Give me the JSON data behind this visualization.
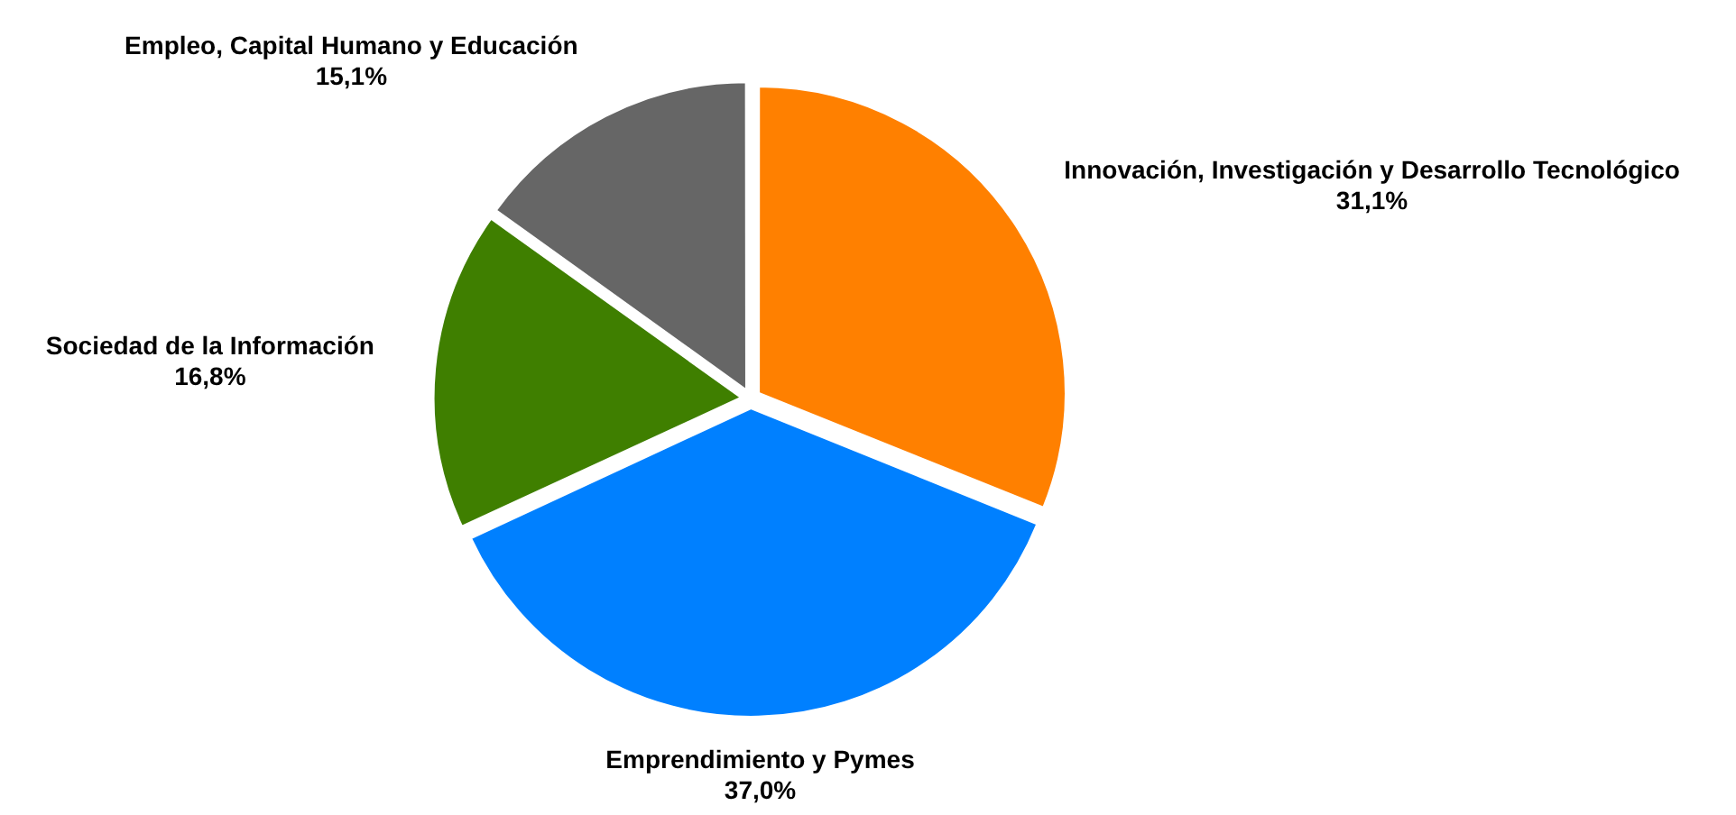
{
  "chart_data": {
    "type": "pie",
    "categories": [
      "Innovación, Investigación y Desarrollo Tecnológico",
      "Emprendimiento y Pymes",
      "Sociedad de la Información",
      "Empleo, Capital Humano y Educación"
    ],
    "values": [
      31.1,
      37.0,
      16.8,
      15.1
    ],
    "colors": [
      "#ff8000",
      "#0080ff",
      "#3f7f00",
      "#666666"
    ],
    "value_labels": [
      "31,1%",
      "37,0%",
      "16,8%",
      "15,1%"
    ],
    "legend": false
  }
}
